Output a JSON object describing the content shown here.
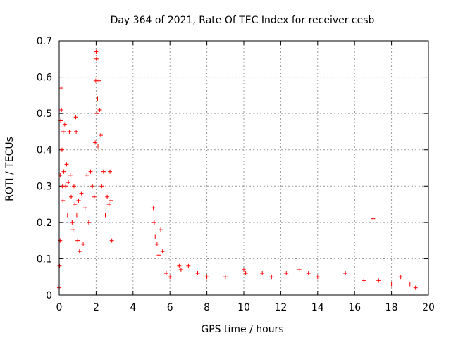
{
  "chart_data": {
    "type": "scatter",
    "title": "Day 364 of 2021, Rate Of TEC Index for receiver cesb",
    "xlabel": "GPS time / hours",
    "ylabel": "ROTI / TECUs",
    "xlim": [
      0,
      20
    ],
    "ylim": [
      0,
      0.7
    ],
    "xticks": [
      0,
      2,
      4,
      6,
      8,
      10,
      12,
      14,
      16,
      18,
      20
    ],
    "yticks": [
      0,
      0.1,
      0.2,
      0.3,
      0.4,
      0.5,
      0.6,
      0.7
    ],
    "ytick_labels": [
      "0",
      "0.1",
      "0.2",
      "0.3",
      "0.4",
      "0.5",
      "0.6",
      "0.7"
    ],
    "grid": true,
    "marker": "+",
    "color": "#ff0000",
    "series": [
      {
        "points": [
          [
            0.0,
            0.02
          ],
          [
            0.02,
            0.08
          ],
          [
            0.05,
            0.15
          ],
          [
            0.05,
            0.33
          ],
          [
            0.08,
            0.48
          ],
          [
            0.1,
            0.57
          ],
          [
            0.12,
            0.51
          ],
          [
            0.15,
            0.4
          ],
          [
            0.18,
            0.3
          ],
          [
            0.2,
            0.26
          ],
          [
            0.22,
            0.45
          ],
          [
            0.25,
            0.34
          ],
          [
            0.3,
            0.47
          ],
          [
            0.35,
            0.3
          ],
          [
            0.4,
            0.36
          ],
          [
            0.45,
            0.22
          ],
          [
            0.5,
            0.31
          ],
          [
            0.55,
            0.45
          ],
          [
            0.6,
            0.33
          ],
          [
            0.65,
            0.27
          ],
          [
            0.7,
            0.2
          ],
          [
            0.75,
            0.18
          ],
          [
            0.8,
            0.3
          ],
          [
            0.85,
            0.25
          ],
          [
            0.9,
            0.49
          ],
          [
            0.92,
            0.45
          ],
          [
            0.95,
            0.22
          ],
          [
            1.0,
            0.15
          ],
          [
            1.05,
            0.26
          ],
          [
            1.1,
            0.12
          ],
          [
            1.2,
            0.28
          ],
          [
            1.3,
            0.14
          ],
          [
            1.4,
            0.24
          ],
          [
            1.5,
            0.33
          ],
          [
            1.6,
            0.2
          ],
          [
            1.7,
            0.34
          ],
          [
            1.8,
            0.3
          ],
          [
            1.9,
            0.27
          ],
          [
            1.95,
            0.42
          ],
          [
            1.98,
            0.59
          ],
          [
            2.0,
            0.67
          ],
          [
            2.02,
            0.65
          ],
          [
            2.05,
            0.5
          ],
          [
            2.08,
            0.54
          ],
          [
            2.1,
            0.41
          ],
          [
            2.15,
            0.59
          ],
          [
            2.2,
            0.51
          ],
          [
            2.25,
            0.44
          ],
          [
            2.3,
            0.3
          ],
          [
            2.4,
            0.34
          ],
          [
            2.5,
            0.22
          ],
          [
            2.6,
            0.27
          ],
          [
            2.7,
            0.25
          ],
          [
            2.75,
            0.34
          ],
          [
            2.8,
            0.26
          ],
          [
            2.85,
            0.15
          ],
          [
            5.1,
            0.24
          ],
          [
            5.15,
            0.2
          ],
          [
            5.2,
            0.16
          ],
          [
            5.3,
            0.14
          ],
          [
            5.4,
            0.11
          ],
          [
            5.5,
            0.18
          ],
          [
            5.6,
            0.12
          ],
          [
            5.8,
            0.06
          ],
          [
            6.0,
            0.05
          ],
          [
            6.5,
            0.08
          ],
          [
            6.6,
            0.07
          ],
          [
            7.0,
            0.08
          ],
          [
            7.5,
            0.06
          ],
          [
            8.0,
            0.05
          ],
          [
            9.0,
            0.05
          ],
          [
            10.0,
            0.07
          ],
          [
            10.1,
            0.06
          ],
          [
            11.0,
            0.06
          ],
          [
            11.5,
            0.05
          ],
          [
            12.3,
            0.06
          ],
          [
            13.0,
            0.07
          ],
          [
            13.5,
            0.06
          ],
          [
            14.0,
            0.05
          ],
          [
            15.5,
            0.06
          ],
          [
            16.5,
            0.04
          ],
          [
            17.0,
            0.21
          ],
          [
            17.3,
            0.04
          ],
          [
            18.0,
            0.03
          ],
          [
            18.5,
            0.05
          ],
          [
            19.0,
            0.03
          ],
          [
            19.3,
            0.02
          ]
        ]
      }
    ]
  }
}
